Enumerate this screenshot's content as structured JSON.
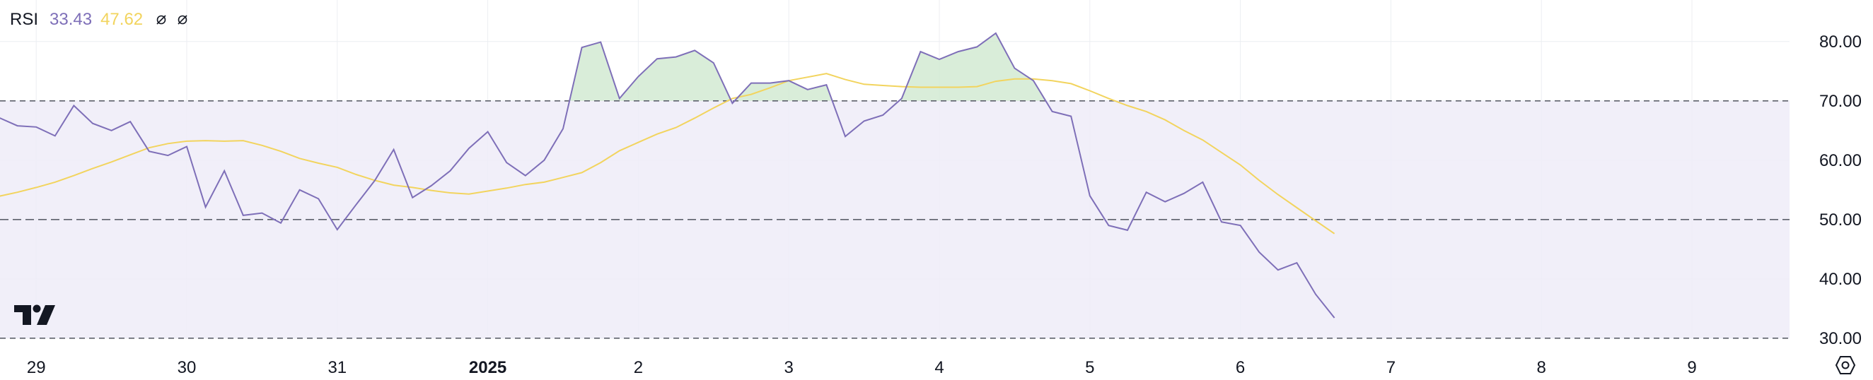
{
  "legend": {
    "title": "RSI",
    "rsi_value": "33.43",
    "ma_value": "47.62",
    "icons": [
      "eye-off-icon",
      "eye-off-icon"
    ]
  },
  "colors": {
    "rsi_line": "#7e6fb8",
    "ma_line": "#f2d45e",
    "band_fill": "#efecf8",
    "overbought_fill": "#cfe8cf",
    "level_line": "#5d606b",
    "axis_text": "#131722",
    "grid": "#eceef2"
  },
  "chart_data": {
    "type": "line",
    "title": "",
    "xlabel": "",
    "ylabel": "",
    "ylim": [
      27,
      87
    ],
    "x_tick_labels": [
      {
        "label": "29",
        "x": 2,
        "bold": false
      },
      {
        "label": "30",
        "x": 10,
        "bold": false
      },
      {
        "label": "31",
        "x": 18,
        "bold": false
      },
      {
        "label": "2025",
        "x": 26,
        "bold": true
      },
      {
        "label": "2",
        "x": 34,
        "bold": false
      },
      {
        "label": "3",
        "x": 42,
        "bold": false
      },
      {
        "label": "4",
        "x": 50,
        "bold": false
      },
      {
        "label": "5",
        "x": 58,
        "bold": false
      },
      {
        "label": "6",
        "x": 66,
        "bold": false
      },
      {
        "label": "7",
        "x": 74,
        "bold": false
      },
      {
        "label": "8",
        "x": 82,
        "bold": false
      },
      {
        "label": "9",
        "x": 90,
        "bold": false
      }
    ],
    "y_ticks": [
      "80.00",
      "70.00",
      "60.00",
      "50.00",
      "40.00",
      "30.00"
    ],
    "levels": {
      "upper": 70,
      "middle": 50,
      "lower": 30
    },
    "series": [
      {
        "name": "RSI",
        "values": [
          67.2,
          65.8,
          65.6,
          64.1,
          69.2,
          66.2,
          65.0,
          66.5,
          61.5,
          60.8,
          62.3,
          52.1,
          58.2,
          50.7,
          51.1,
          49.4,
          55.0,
          53.5,
          48.3,
          52.5,
          56.6,
          61.8,
          53.7,
          55.7,
          58.2,
          62.0,
          64.8,
          59.6,
          57.4,
          60.0,
          65.3,
          79.0,
          79.9,
          70.4,
          74.1,
          77.1,
          77.4,
          78.5,
          76.4,
          69.6,
          73.0,
          73.0,
          73.4,
          71.9,
          72.7,
          64.0,
          66.6,
          67.6,
          70.4,
          78.3,
          77.0,
          78.3,
          79.1,
          81.4,
          75.5,
          73.4,
          68.2,
          67.4,
          54.0,
          49.0,
          48.2,
          54.6,
          53.0,
          54.4,
          56.3,
          49.6,
          49.0,
          44.5,
          41.5,
          42.7,
          37.4,
          33.43
        ],
        "color": "#7e6fb8"
      },
      {
        "name": "",
        "values": [
          53.9,
          54.6,
          55.4,
          56.3,
          57.4,
          58.6,
          59.7,
          60.9,
          62.1,
          62.8,
          63.2,
          63.3,
          63.2,
          63.3,
          62.5,
          61.5,
          60.3,
          59.5,
          58.8,
          57.6,
          56.6,
          55.8,
          55.4,
          54.9,
          54.5,
          54.3,
          54.8,
          55.3,
          55.9,
          56.3,
          57.1,
          57.9,
          59.6,
          61.6,
          63.0,
          64.4,
          65.5,
          67.1,
          68.8,
          70.4,
          71.1,
          72.2,
          73.4,
          74.0,
          74.6,
          73.6,
          72.8,
          72.6,
          72.4,
          72.3,
          72.3,
          72.3,
          72.4,
          73.3,
          73.7,
          73.7,
          73.4,
          72.9,
          71.7,
          70.4,
          69.2,
          68.2,
          66.8,
          65.0,
          63.4,
          61.3,
          59.2,
          56.6,
          54.2,
          52.0,
          49.8,
          47.62
        ],
        "color": "#f2d45e"
      }
    ]
  }
}
